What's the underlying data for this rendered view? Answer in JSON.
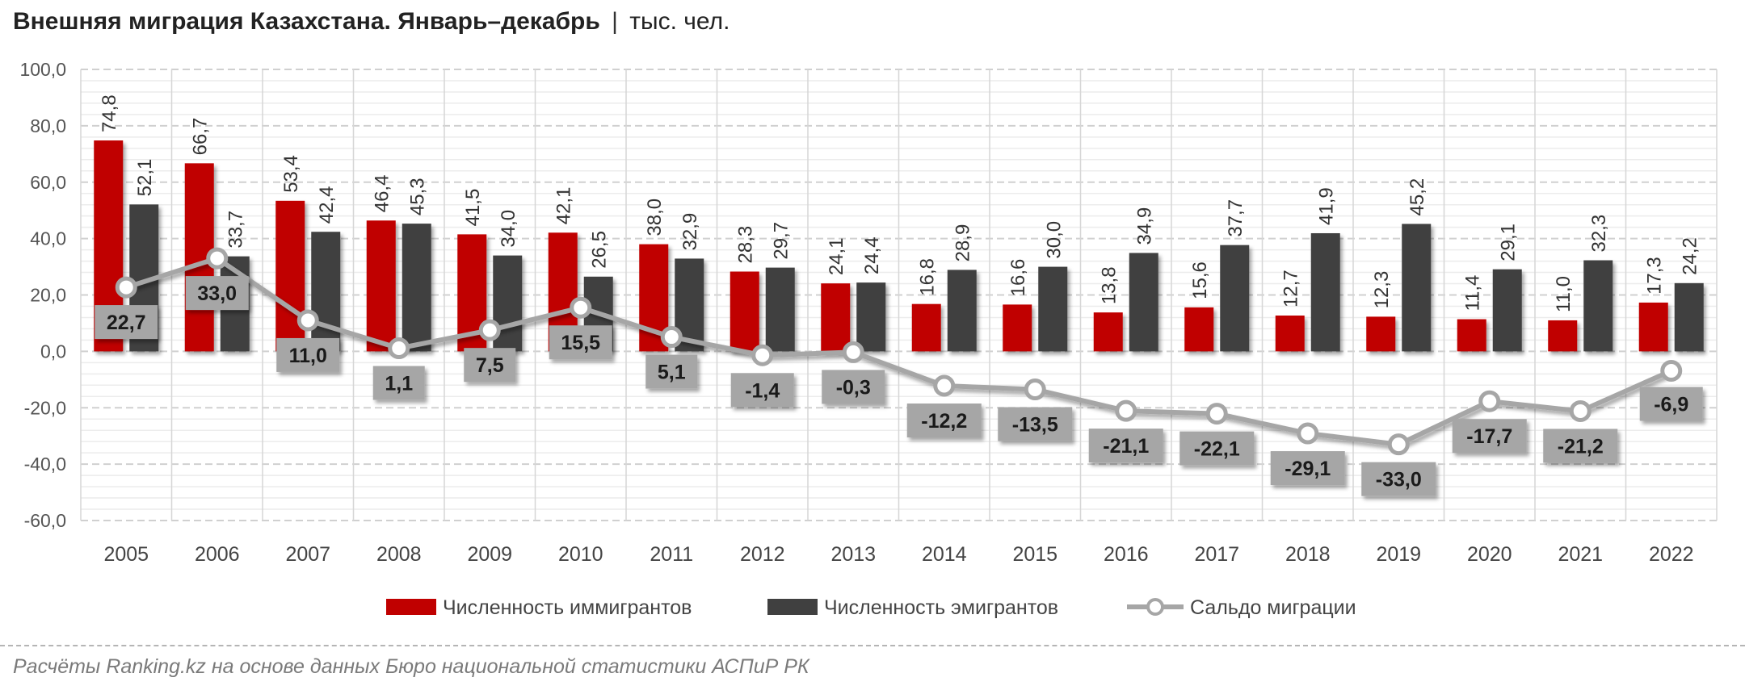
{
  "title": "Внешняя миграция Казахстана. Январь–декабрь",
  "title_separator": "|",
  "unit": "тыс. чел.",
  "source": "Расчёты Ranking.kz на основе данных Бюро национальной статистики АСПиР РК",
  "colors": {
    "immigrants": "#c00000",
    "emigrants": "#404040",
    "balance_line": "#a6a6a6",
    "balance_label_bg": "#a6a6a6"
  },
  "chart_data": {
    "type": "bar",
    "categories": [
      "2005",
      "2006",
      "2007",
      "2008",
      "2009",
      "2010",
      "2011",
      "2012",
      "2013",
      "2014",
      "2015",
      "2016",
      "2017",
      "2018",
      "2019",
      "2020",
      "2021",
      "2022"
    ],
    "y_tick_labels": [
      "100,0",
      "80,0",
      "60,0",
      "40,0",
      "20,0",
      "0,0",
      "-20,0",
      "-40,0",
      "-60,0"
    ],
    "ylim": [
      -60,
      100
    ],
    "grid": true,
    "legend_position": "bottom",
    "series": [
      {
        "name": "Численность иммигрантов",
        "type": "bar",
        "color": "#c00000",
        "values": [
          74.8,
          66.7,
          53.4,
          46.4,
          41.5,
          42.1,
          38.0,
          28.3,
          24.1,
          16.8,
          16.6,
          13.8,
          15.6,
          12.7,
          12.3,
          11.4,
          11.0,
          17.3
        ],
        "labels": [
          "74,8",
          "66,7",
          "53,4",
          "46,4",
          "41,5",
          "42,1",
          "38,0",
          "28,3",
          "24,1",
          "16,8",
          "16,6",
          "13,8",
          "15,6",
          "12,7",
          "12,3",
          "11,4",
          "11,0",
          "17,3"
        ]
      },
      {
        "name": "Численность эмигрантов",
        "type": "bar",
        "color": "#404040",
        "values": [
          52.1,
          33.7,
          42.4,
          45.3,
          34.0,
          26.5,
          32.9,
          29.7,
          24.4,
          28.9,
          30.0,
          34.9,
          37.7,
          41.9,
          45.2,
          29.1,
          32.3,
          24.2
        ],
        "labels": [
          "52,1",
          "33,7",
          "42,4",
          "45,3",
          "34,0",
          "26,5",
          "32,9",
          "29,7",
          "24,4",
          "28,9",
          "30,0",
          "34,9",
          "37,7",
          "41,9",
          "45,2",
          "29,1",
          "32,3",
          "24,2"
        ]
      },
      {
        "name": "Сальдо миграции",
        "type": "line",
        "color": "#a6a6a6",
        "values": [
          22.7,
          33.0,
          11.0,
          1.1,
          7.5,
          15.5,
          5.1,
          -1.4,
          -0.3,
          -12.2,
          -13.5,
          -21.1,
          -22.1,
          -29.1,
          -33.0,
          -17.7,
          -21.2,
          -6.9
        ],
        "labels": [
          "22,7",
          "33,0",
          "11,0",
          "1,1",
          "7,5",
          "15,5",
          "5,1",
          "-1,4",
          "-0,3",
          "-12,2",
          "-13,5",
          "-21,1",
          "-22,1",
          "-29,1",
          "-33,0",
          "-17,7",
          "-21,2",
          "-6,9"
        ]
      }
    ]
  }
}
